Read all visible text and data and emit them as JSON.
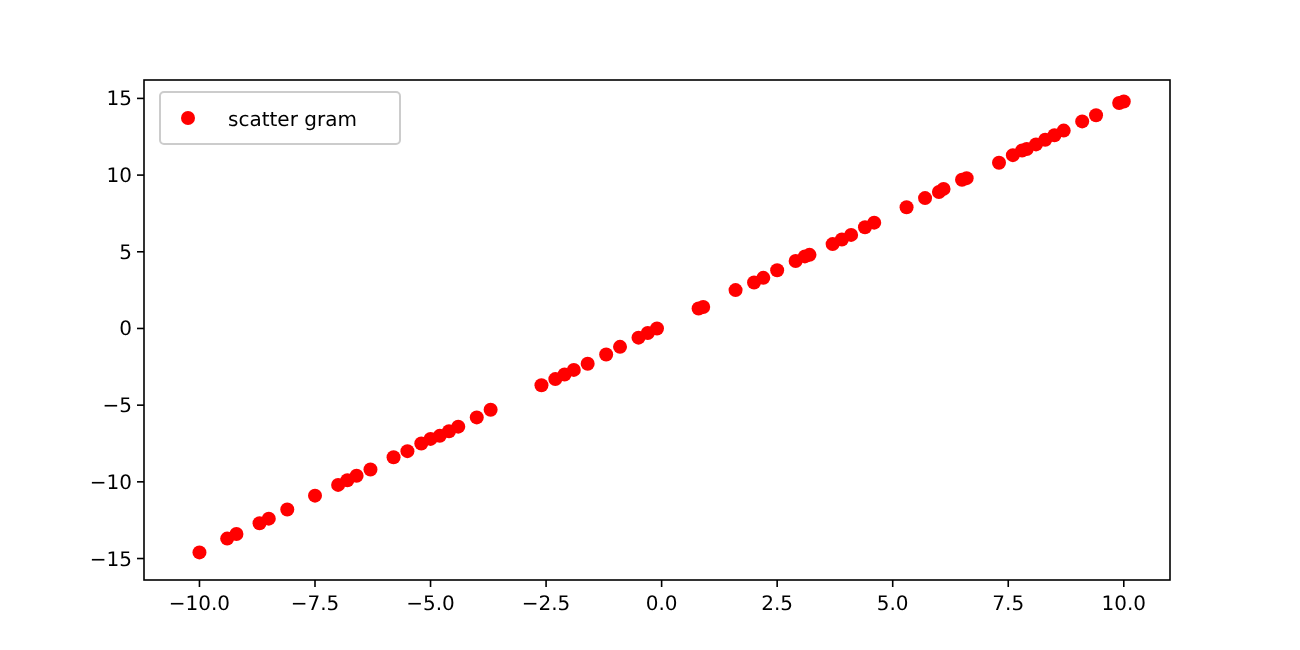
{
  "chart_data": {
    "type": "scatter",
    "legend": "top left",
    "marker": "circle",
    "x": [
      -10,
      -9.4,
      -9.2,
      -8.7,
      -8.5,
      -8.1,
      -7.5,
      -7.0,
      -6.8,
      -6.6,
      -6.3,
      -5.8,
      -5.5,
      -5.2,
      -5.0,
      -4.8,
      -4.6,
      -4.4,
      -4.0,
      -3.7,
      -2.6,
      -2.3,
      -2.1,
      -1.9,
      -1.6,
      -1.2,
      -0.9,
      -0.5,
      -0.3,
      -0.1,
      0.8,
      0.9,
      1.6,
      2.0,
      2.2,
      2.5,
      2.9,
      3.1,
      3.2,
      3.7,
      3.9,
      4.1,
      4.4,
      4.6,
      5.3,
      5.7,
      6.0,
      6.1,
      6.5,
      6.6,
      7.3,
      7.6,
      7.8,
      7.9,
      8.1,
      8.3,
      8.5,
      8.7,
      9.1,
      9.4,
      9.9,
      10.0
    ],
    "series": [
      {
        "name": "scatter gram",
        "color": "#ff0000",
        "values": [
          -14.6,
          -13.7,
          -13.4,
          -12.7,
          -12.4,
          -11.8,
          -10.9,
          -10.2,
          -9.9,
          -9.6,
          -9.2,
          -8.4,
          -8.0,
          -7.5,
          -7.2,
          -7.0,
          -6.7,
          -6.4,
          -5.8,
          -5.3,
          -3.7,
          -3.3,
          -3.0,
          -2.7,
          -2.3,
          -1.7,
          -1.2,
          -0.6,
          -0.3,
          0.0,
          1.3,
          1.4,
          2.5,
          3.0,
          3.3,
          3.8,
          4.4,
          4.7,
          4.8,
          5.5,
          5.8,
          6.1,
          6.6,
          6.9,
          7.9,
          8.5,
          8.9,
          9.1,
          9.7,
          9.8,
          10.8,
          11.3,
          11.6,
          11.7,
          12.0,
          12.3,
          12.6,
          12.9,
          13.5,
          13.9,
          14.7,
          14.8
        ]
      }
    ],
    "xlim": [
      -11.2,
      11
    ],
    "ylim": [
      -16.4,
      16.2
    ],
    "xticks": [
      {
        "value": -10,
        "label": "−10.0"
      },
      {
        "value": -7.5,
        "label": "−7.5"
      },
      {
        "value": -5,
        "label": "−5.0"
      },
      {
        "value": -2.5,
        "label": "−2.5"
      },
      {
        "value": 0,
        "label": "0.0"
      },
      {
        "value": 2.5,
        "label": "2.5"
      },
      {
        "value": 5,
        "label": "5.0"
      },
      {
        "value": 7.5,
        "label": "7.5"
      },
      {
        "value": 10,
        "label": "10.0"
      }
    ],
    "yticks": [
      {
        "value": -15,
        "label": "−15"
      },
      {
        "value": -10,
        "label": "−10"
      },
      {
        "value": -5,
        "label": "−5"
      },
      0,
      5,
      10,
      15
    ]
  }
}
